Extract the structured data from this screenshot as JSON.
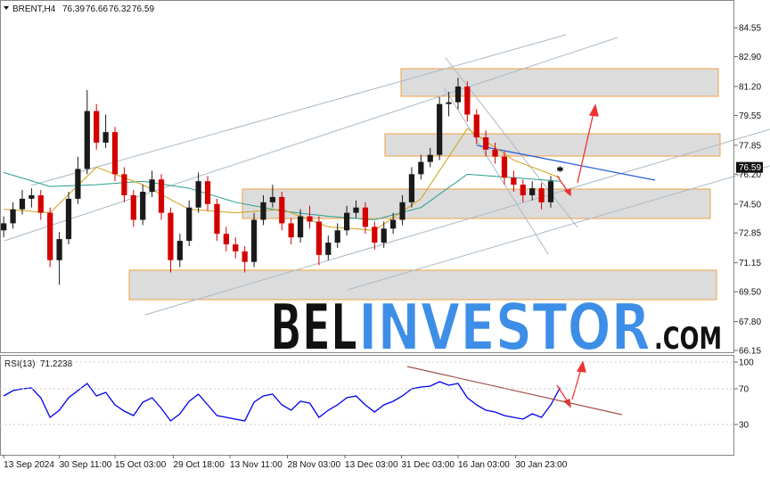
{
  "chart_data": {
    "type": "candlestick",
    "symbol": "BRENT,H4",
    "up_color": "#1a1a1a",
    "down_color": "#d40000",
    "candles": [
      [
        73.0,
        73.8,
        72.6,
        73.4
      ],
      [
        73.4,
        74.6,
        73.1,
        74.2
      ],
      [
        74.2,
        75.3,
        73.9,
        74.8
      ],
      [
        74.8,
        75.4,
        74.3,
        75.0
      ],
      [
        75.0,
        75.3,
        73.6,
        74.0
      ],
      [
        74.0,
        74.3,
        70.9,
        71.3
      ],
      [
        71.3,
        72.9,
        69.9,
        72.5
      ],
      [
        72.5,
        75.2,
        72.2,
        74.8
      ],
      [
        74.8,
        77.2,
        74.5,
        76.5
      ],
      [
        76.5,
        81.0,
        76.2,
        79.8
      ],
      [
        79.8,
        80.2,
        77.6,
        78.0
      ],
      [
        78.0,
        79.6,
        77.7,
        78.6
      ],
      [
        78.6,
        78.9,
        75.8,
        76.2
      ],
      [
        76.2,
        76.6,
        74.6,
        75.0
      ],
      [
        75.0,
        75.3,
        73.2,
        73.6
      ],
      [
        73.6,
        75.6,
        73.3,
        75.2
      ],
      [
        75.2,
        76.4,
        74.9,
        75.9
      ],
      [
        75.9,
        76.2,
        73.6,
        74.0
      ],
      [
        74.0,
        74.3,
        70.6,
        71.3
      ],
      [
        71.3,
        72.8,
        70.9,
        72.4
      ],
      [
        72.4,
        74.7,
        72.1,
        74.3
      ],
      [
        74.3,
        76.3,
        74.0,
        75.8
      ],
      [
        75.8,
        76.1,
        74.1,
        74.5
      ],
      [
        74.5,
        74.8,
        72.4,
        72.8
      ],
      [
        72.8,
        73.2,
        71.8,
        72.2
      ],
      [
        72.2,
        72.6,
        71.4,
        71.8
      ],
      [
        71.8,
        72.1,
        70.6,
        71.2
      ],
      [
        71.2,
        74.0,
        70.9,
        73.6
      ],
      [
        73.6,
        75.0,
        73.3,
        74.6
      ],
      [
        74.6,
        75.6,
        74.3,
        74.9
      ],
      [
        74.9,
        75.2,
        73.0,
        73.4
      ],
      [
        73.4,
        73.7,
        72.2,
        72.6
      ],
      [
        72.6,
        74.2,
        72.3,
        73.8
      ],
      [
        73.8,
        74.4,
        73.1,
        73.5
      ],
      [
        73.5,
        73.8,
        71.0,
        71.6
      ],
      [
        71.6,
        72.7,
        71.3,
        72.3
      ],
      [
        72.3,
        73.4,
        72.0,
        73.0
      ],
      [
        73.0,
        74.4,
        72.7,
        74.0
      ],
      [
        74.0,
        74.7,
        73.7,
        74.3
      ],
      [
        74.3,
        74.6,
        72.8,
        73.2
      ],
      [
        73.2,
        73.5,
        71.9,
        72.3
      ],
      [
        72.3,
        73.5,
        72.0,
        73.1
      ],
      [
        73.1,
        74.0,
        72.8,
        73.6
      ],
      [
        73.6,
        75.0,
        73.3,
        74.6
      ],
      [
        74.6,
        76.6,
        74.3,
        76.2
      ],
      [
        76.2,
        77.3,
        75.9,
        76.9
      ],
      [
        76.9,
        77.7,
        76.6,
        77.3
      ],
      [
        77.3,
        80.6,
        77.0,
        80.2
      ],
      [
        80.2,
        80.9,
        79.5,
        80.3
      ],
      [
        80.3,
        81.7,
        79.9,
        81.2
      ],
      [
        81.2,
        81.5,
        79.2,
        79.6
      ],
      [
        79.6,
        79.9,
        77.9,
        78.3
      ],
      [
        78.3,
        78.7,
        77.2,
        77.6
      ],
      [
        77.6,
        78.0,
        76.8,
        77.2
      ],
      [
        77.2,
        77.5,
        75.6,
        76.0
      ],
      [
        76.0,
        76.4,
        75.2,
        75.6
      ],
      [
        75.6,
        75.9,
        74.6,
        75.0
      ],
      [
        75.0,
        75.8,
        74.7,
        75.4
      ],
      [
        75.4,
        75.7,
        74.2,
        74.6
      ],
      [
        74.6,
        76.1,
        74.3,
        75.8
      ],
      [
        76.39,
        76.66,
        76.32,
        76.59
      ]
    ],
    "moving_averages": [
      {
        "color": "#2a9d8f",
        "x": [
          0,
          5,
          10,
          15,
          20,
          25,
          30,
          35,
          40,
          45,
          50,
          55,
          60
        ],
        "values": [
          76.3,
          75.5,
          75.6,
          75.8,
          75.4,
          74.6,
          74.1,
          73.8,
          73.6,
          74.3,
          76.2,
          76.0,
          75.8
        ]
      },
      {
        "color": "#d4a017",
        "x": [
          0,
          5,
          10,
          15,
          20,
          25,
          30,
          35,
          40,
          45,
          50,
          55,
          60
        ],
        "values": [
          74.2,
          74.0,
          76.6,
          75.6,
          74.2,
          74.0,
          74.2,
          73.2,
          73.0,
          74.8,
          78.8,
          77.0,
          76.0
        ]
      }
    ],
    "xlim": [
      -0.4,
      78.8
    ],
    "xticks": [
      {
        "value": 0,
        "label": "13 Sep 2024"
      },
      {
        "value": 6,
        "label": "30 Sep 11:00"
      },
      {
        "value": 12,
        "label": "15 Oct 03:00"
      },
      {
        "value": 18.3,
        "label": "29 Oct 18:00"
      },
      {
        "value": 24.4,
        "label": "13 Nov 11:00"
      },
      {
        "value": 30.6,
        "label": "28 Nov 03:00"
      },
      {
        "value": 36.8,
        "label": "13 Dec 03:00"
      },
      {
        "value": 42.9,
        "label": "31 Dec 03:00"
      },
      {
        "value": 49,
        "label": "16 Jan 03:00"
      },
      {
        "value": 55.2,
        "label": "30 Jan 23:00"
      }
    ],
    "ylim": [
      66.05,
      86.13
    ],
    "yticks": [
      84.55,
      {
        "value": 82.9,
        "label": "82.90"
      },
      {
        "value": 81.2,
        "label": "81.20"
      },
      79.55,
      77.85,
      {
        "value": 76.2,
        "label": "76.20"
      },
      {
        "value": 74.5,
        "label": "74.50"
      },
      72.85,
      71.15,
      {
        "value": 69.5,
        "label": "69.50"
      },
      {
        "value": 67.8,
        "label": "67.80"
      },
      66.15
    ],
    "rsi": {
      "name": "RSI(13)",
      "color": "#0000ee",
      "values": [
        62,
        68,
        70,
        71,
        60,
        38,
        46,
        60,
        68,
        76,
        62,
        66,
        52,
        45,
        40,
        55,
        60,
        48,
        34,
        42,
        56,
        64,
        52,
        40,
        38,
        36,
        34,
        55,
        62,
        64,
        52,
        46,
        56,
        54,
        38,
        46,
        52,
        60,
        62,
        52,
        44,
        52,
        56,
        62,
        70,
        72,
        73,
        78,
        74,
        76,
        60,
        52,
        46,
        44,
        40,
        38,
        36,
        42,
        38,
        52,
        71.2238
      ],
      "ylim": [
        -4,
        108
      ],
      "yticks": [
        100,
        70,
        30
      ]
    },
    "watermark": {
      "left": "BEL",
      "middle": "INVESTOR",
      "right": ".COM"
    }
  }
}
